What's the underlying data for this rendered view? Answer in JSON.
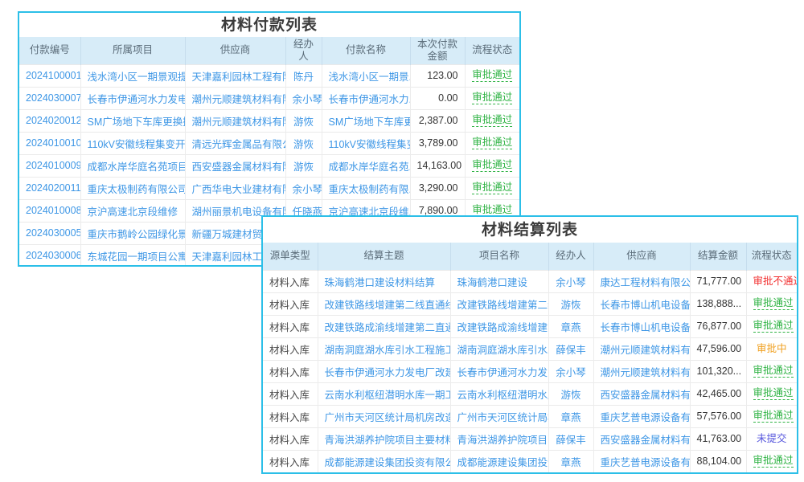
{
  "colors": {
    "accent": "#2cbfe8",
    "header_bg": "#d7ecf8",
    "header_text": "#5a6b78",
    "link": "#3e97e6",
    "green": "#2fb344",
    "red": "#f23030",
    "orange": "#f0a020",
    "violet": "#5656dd"
  },
  "windows": [
    {
      "title": "材料付款列表",
      "columns": [
        {
          "key": "payment-no",
          "label": "付款编号",
          "type": "link",
          "align": "center"
        },
        {
          "key": "project",
          "label": "所属项目",
          "type": "link",
          "align": "left"
        },
        {
          "key": "supplier",
          "label": "供应商",
          "type": "link",
          "align": "left"
        },
        {
          "key": "handler",
          "label": "经办人",
          "type": "link",
          "align": "center"
        },
        {
          "key": "payment-name",
          "label": "付款名称",
          "type": "link",
          "align": "left"
        },
        {
          "key": "amount",
          "label": "本次付款金额",
          "type": "amount",
          "align": "right"
        },
        {
          "key": "status",
          "label": "流程状态",
          "type": "status",
          "align": "center"
        }
      ],
      "rows": [
        {
          "cells": [
            "2024100001",
            "浅水湾小区一期景观提...",
            "天津嘉利园林工程有限...",
            "陈丹",
            "浅水湾小区一期景...",
            "123.00",
            "审批通过"
          ],
          "status": "approved"
        },
        {
          "cells": [
            "2024030007",
            "长春市伊通河水力发电...",
            "潮州元顺建筑材料有限...",
            "余小琴",
            "长春市伊通河水力...",
            "0.00",
            "审批通过"
          ],
          "status": "approved"
        },
        {
          "cells": [
            "2024020012",
            "SM广场地下车库更换摄...",
            "潮州元顺建筑材料有限...",
            "游恢",
            "SM广场地下车库更...",
            "2,387.00",
            "审批通过"
          ],
          "status": "approved"
        },
        {
          "cells": [
            "2024010010",
            "110kV安徽线程集变开断...",
            "清远光辉金属品有限公司",
            "游恢",
            "110kV安徽线程集变...",
            "3,789.00",
            "审批通过"
          ],
          "status": "approved"
        },
        {
          "cells": [
            "2024010009",
            "成都水岸华庭名苑项目...",
            "西安盛器金属材料有限...",
            "游恢",
            "成都水岸华庭名苑...",
            "14,163.00",
            "审批通过"
          ],
          "status": "approved"
        },
        {
          "cells": [
            "2024020011",
            "重庆太极制药有限公司...",
            "广西华电大业建材有限...",
            "余小琴",
            "重庆太极制药有限...",
            "3,290.00",
            "审批通过"
          ],
          "status": "approved"
        },
        {
          "cells": [
            "2024010008",
            "京沪高速北京段维修",
            "湖州丽景机电设备有限...",
            "任晓燕",
            "京沪高速北京段维...",
            "7,890.00",
            "审批通过"
          ],
          "status": "approved"
        },
        {
          "cells": [
            "2024030005",
            "重庆市鹅岭公园绿化景...",
            "新疆万城建材贸易有",
            "",
            "",
            "",
            ""
          ],
          "status": "none"
        },
        {
          "cells": [
            "2024030006",
            "东城花园一期项目公寓...",
            "天津嘉利园林工程有",
            "",
            "",
            "",
            ""
          ],
          "status": "none"
        }
      ]
    },
    {
      "title": "材料结算列表",
      "columns": [
        {
          "key": "source-type",
          "label": "源单类型",
          "type": "plain",
          "align": "left"
        },
        {
          "key": "settle-subject",
          "label": "结算主题",
          "type": "link",
          "align": "left"
        },
        {
          "key": "project-name",
          "label": "项目名称",
          "type": "link",
          "align": "left"
        },
        {
          "key": "handler",
          "label": "经办人",
          "type": "link",
          "align": "center"
        },
        {
          "key": "supplier",
          "label": "供应商",
          "type": "link",
          "align": "left"
        },
        {
          "key": "settle-amount",
          "label": "结算金额",
          "type": "amount",
          "align": "right"
        },
        {
          "key": "status",
          "label": "流程状态",
          "type": "status",
          "align": "center"
        }
      ],
      "rows": [
        {
          "cells": [
            "材料入库",
            "珠海鹤港口建设材料结算",
            "珠海鹤港口建设",
            "余小琴",
            "康达工程材料有限公司",
            "71,777.00",
            "审批不通过"
          ],
          "status": "rejected"
        },
        {
          "cells": [
            "材料入库",
            "改建铁路线增建第二线直通线（成...",
            "改建铁路线增建第二线直...",
            "游恢",
            "长春市博山机电设备...",
            "138,888...",
            "审批通过"
          ],
          "status": "approved"
        },
        {
          "cells": [
            "材料入库",
            "改建铁路成渝线增建第二直通线（...",
            "改建铁路成渝线增建第二...",
            "章燕",
            "长春市博山机电设备...",
            "76,877.00",
            "审批通过"
          ],
          "status": "approved"
        },
        {
          "cells": [
            "材料入库",
            "湖南洞庭湖水库引水工程施工I标材...",
            "湖南洞庭湖水库引水工程...",
            "薛保丰",
            "潮州元顺建筑材料有...",
            "47,596.00",
            "审批中"
          ],
          "status": "pending"
        },
        {
          "cells": [
            "材料入库",
            "长春市伊通河水力发电厂改建工程...",
            "长春市伊通河水力发电厂...",
            "余小琴",
            "潮州元顺建筑材料有...",
            "101,320...",
            "审批通过"
          ],
          "status": "approved"
        },
        {
          "cells": [
            "材料入库",
            "云南水利枢纽潜明水库一期工程施...",
            "云南水利枢纽潜明水库一...",
            "游恢",
            "西安盛器金属材料有...",
            "42,465.00",
            "审批通过"
          ],
          "status": "approved"
        },
        {
          "cells": [
            "材料入库",
            "广州市天河区统计局机房改造项目...",
            "广州市天河区统计局机房...",
            "章燕",
            "重庆艺普电源设备有...",
            "57,576.00",
            "审批通过"
          ],
          "status": "approved"
        },
        {
          "cells": [
            "材料入库",
            "青海洪湖养护院项目主要材料结算",
            "青海洪湖养护院项目",
            "薛保丰",
            "西安盛器金属材料有...",
            "41,763.00",
            "未提交"
          ],
          "status": "unsubmitted"
        },
        {
          "cells": [
            "材料入库",
            "成都能源建设集团投资有限公司临...",
            "成都能源建设集团投资有...",
            "章燕",
            "重庆艺普电源设备有...",
            "88,104.00",
            "审批通过"
          ],
          "status": "approved"
        }
      ]
    }
  ]
}
